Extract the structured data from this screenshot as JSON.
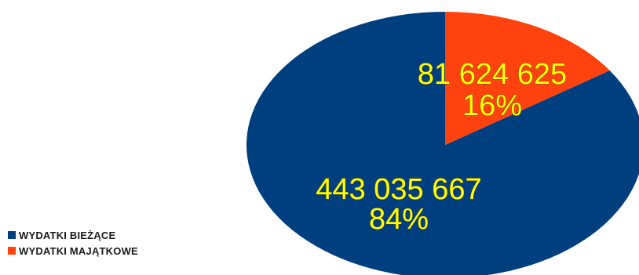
{
  "chart_data": {
    "type": "pie",
    "title": "",
    "legend_position": "bottom-left",
    "slices": [
      {
        "name": "WYDATKI BIEŻĄCE",
        "value": 443035667,
        "value_label": "443 035 667",
        "percent_label": "84%",
        "color": "#003F7F"
      },
      {
        "name": "WYDATKI MAJĄTKOWE",
        "value": 81624625,
        "value_label": "81 624 625",
        "percent_label": "16%",
        "color": "#FF420E"
      }
    ],
    "label_color": "#FFFF00"
  }
}
